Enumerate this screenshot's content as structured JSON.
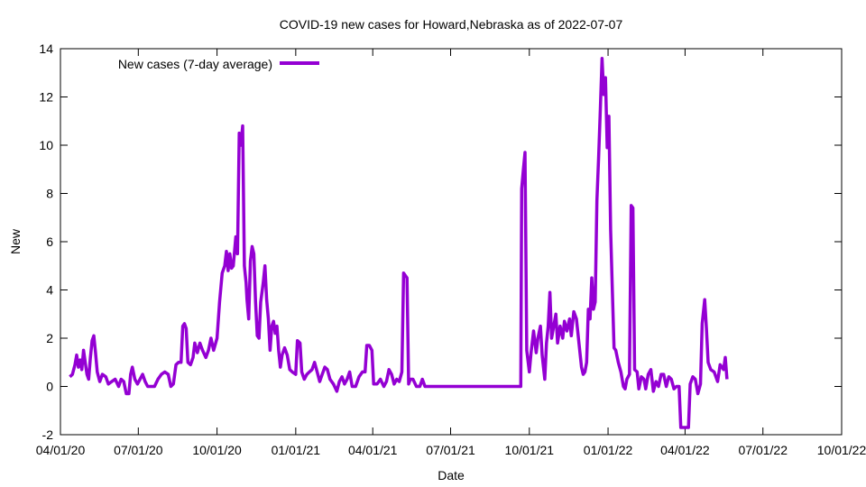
{
  "chart_data": {
    "type": "line",
    "title": "COVID-19 new cases for Howard,Nebraska as of 2022-07-07",
    "xlabel": "Date",
    "ylabel": "New",
    "xlim": [
      "2020-04-01",
      "2022-10-01"
    ],
    "ylim": [
      -2,
      14
    ],
    "x_ticks": [
      "04/01/20",
      "07/01/20",
      "10/01/20",
      "01/01/21",
      "04/01/21",
      "07/01/21",
      "10/01/21",
      "01/01/22",
      "04/01/22",
      "07/01/22",
      "10/01/22"
    ],
    "y_ticks": [
      -2,
      0,
      2,
      4,
      6,
      8,
      10,
      12,
      14
    ],
    "grid": false,
    "legend_position": "top-left",
    "color": "#9400d3",
    "series": [
      {
        "name": "New cases (7-day average)",
        "points": [
          [
            "2020-04-12",
            0.4
          ],
          [
            "2020-04-15",
            0.5
          ],
          [
            "2020-04-18",
            0.9
          ],
          [
            "2020-04-20",
            1.3
          ],
          [
            "2020-04-22",
            0.8
          ],
          [
            "2020-04-24",
            1.1
          ],
          [
            "2020-04-26",
            0.7
          ],
          [
            "2020-04-28",
            1.5
          ],
          [
            "2020-04-30",
            1.0
          ],
          [
            "2020-05-02",
            0.5
          ],
          [
            "2020-05-04",
            0.3
          ],
          [
            "2020-05-06",
            1.2
          ],
          [
            "2020-05-08",
            1.9
          ],
          [
            "2020-05-10",
            2.1
          ],
          [
            "2020-05-12",
            1.4
          ],
          [
            "2020-05-14",
            0.6
          ],
          [
            "2020-05-17",
            0.2
          ],
          [
            "2020-05-20",
            0.5
          ],
          [
            "2020-05-24",
            0.4
          ],
          [
            "2020-05-27",
            0.1
          ],
          [
            "2020-05-31",
            0.2
          ],
          [
            "2020-06-04",
            0.3
          ],
          [
            "2020-06-08",
            0.0
          ],
          [
            "2020-06-11",
            0.3
          ],
          [
            "2020-06-14",
            0.2
          ],
          [
            "2020-06-17",
            -0.3
          ],
          [
            "2020-06-20",
            -0.3
          ],
          [
            "2020-06-22",
            0.5
          ],
          [
            "2020-06-24",
            0.8
          ],
          [
            "2020-06-27",
            0.3
          ],
          [
            "2020-06-30",
            0.1
          ],
          [
            "2020-07-03",
            0.3
          ],
          [
            "2020-07-06",
            0.5
          ],
          [
            "2020-07-09",
            0.2
          ],
          [
            "2020-07-12",
            0.0
          ],
          [
            "2020-07-16",
            0.0
          ],
          [
            "2020-07-20",
            0.0
          ],
          [
            "2020-07-24",
            0.3
          ],
          [
            "2020-07-28",
            0.5
          ],
          [
            "2020-08-01",
            0.6
          ],
          [
            "2020-08-05",
            0.5
          ],
          [
            "2020-08-08",
            0.0
          ],
          [
            "2020-08-11",
            0.1
          ],
          [
            "2020-08-14",
            0.9
          ],
          [
            "2020-08-17",
            1.0
          ],
          [
            "2020-08-20",
            1.0
          ],
          [
            "2020-08-22",
            2.5
          ],
          [
            "2020-08-24",
            2.6
          ],
          [
            "2020-08-26",
            2.4
          ],
          [
            "2020-08-28",
            1.0
          ],
          [
            "2020-08-31",
            0.9
          ],
          [
            "2020-09-03",
            1.2
          ],
          [
            "2020-09-05",
            1.8
          ],
          [
            "2020-09-08",
            1.4
          ],
          [
            "2020-09-11",
            1.8
          ],
          [
            "2020-09-14",
            1.5
          ],
          [
            "2020-09-18",
            1.2
          ],
          [
            "2020-09-21",
            1.5
          ],
          [
            "2020-09-24",
            2.0
          ],
          [
            "2020-09-27",
            1.5
          ],
          [
            "2020-10-01",
            2.0
          ],
          [
            "2020-10-04",
            3.5
          ],
          [
            "2020-10-07",
            4.7
          ],
          [
            "2020-10-10",
            5.0
          ],
          [
            "2020-10-12",
            5.6
          ],
          [
            "2020-10-14",
            4.8
          ],
          [
            "2020-10-16",
            5.5
          ],
          [
            "2020-10-18",
            4.9
          ],
          [
            "2020-10-20",
            5.0
          ],
          [
            "2020-10-23",
            6.2
          ],
          [
            "2020-10-25",
            5.5
          ],
          [
            "2020-10-27",
            10.5
          ],
          [
            "2020-10-29",
            10.0
          ],
          [
            "2020-10-31",
            10.8
          ],
          [
            "2020-11-02",
            5.0
          ],
          [
            "2020-11-04",
            4.3
          ],
          [
            "2020-11-05",
            3.6
          ],
          [
            "2020-11-07",
            2.8
          ],
          [
            "2020-11-09",
            5.2
          ],
          [
            "2020-11-11",
            5.8
          ],
          [
            "2020-11-13",
            5.5
          ],
          [
            "2020-11-15",
            3.5
          ],
          [
            "2020-11-17",
            2.1
          ],
          [
            "2020-11-19",
            2.0
          ],
          [
            "2020-11-21",
            3.5
          ],
          [
            "2020-11-24",
            4.3
          ],
          [
            "2020-11-26",
            5.0
          ],
          [
            "2020-11-28",
            3.6
          ],
          [
            "2020-11-30",
            2.8
          ],
          [
            "2020-12-02",
            1.5
          ],
          [
            "2020-12-04",
            2.5
          ],
          [
            "2020-12-06",
            2.7
          ],
          [
            "2020-12-08",
            2.2
          ],
          [
            "2020-12-10",
            2.5
          ],
          [
            "2020-12-12",
            1.5
          ],
          [
            "2020-12-14",
            0.8
          ],
          [
            "2020-12-16",
            1.3
          ],
          [
            "2020-12-19",
            1.6
          ],
          [
            "2020-12-22",
            1.3
          ],
          [
            "2020-12-25",
            0.7
          ],
          [
            "2020-12-28",
            0.6
          ],
          [
            "2021-01-01",
            0.5
          ],
          [
            "2021-01-03",
            1.9
          ],
          [
            "2021-01-06",
            1.8
          ],
          [
            "2021-01-08",
            0.6
          ],
          [
            "2021-01-11",
            0.3
          ],
          [
            "2021-01-14",
            0.5
          ],
          [
            "2021-01-17",
            0.6
          ],
          [
            "2021-01-20",
            0.7
          ],
          [
            "2021-01-23",
            1.0
          ],
          [
            "2021-01-26",
            0.6
          ],
          [
            "2021-01-29",
            0.2
          ],
          [
            "2021-02-01",
            0.5
          ],
          [
            "2021-02-04",
            0.8
          ],
          [
            "2021-02-07",
            0.7
          ],
          [
            "2021-02-10",
            0.3
          ],
          [
            "2021-02-14",
            0.1
          ],
          [
            "2021-02-18",
            -0.2
          ],
          [
            "2021-02-21",
            0.2
          ],
          [
            "2021-02-24",
            0.4
          ],
          [
            "2021-02-27",
            0.1
          ],
          [
            "2021-03-02",
            0.3
          ],
          [
            "2021-03-05",
            0.6
          ],
          [
            "2021-03-08",
            0.0
          ],
          [
            "2021-03-12",
            0.0
          ],
          [
            "2021-03-16",
            0.4
          ],
          [
            "2021-03-20",
            0.6
          ],
          [
            "2021-03-23",
            0.6
          ],
          [
            "2021-03-25",
            1.7
          ],
          [
            "2021-03-28",
            1.7
          ],
          [
            "2021-03-31",
            1.5
          ],
          [
            "2021-04-02",
            0.1
          ],
          [
            "2021-04-06",
            0.1
          ],
          [
            "2021-04-10",
            0.3
          ],
          [
            "2021-04-14",
            0.0
          ],
          [
            "2021-04-17",
            0.2
          ],
          [
            "2021-04-20",
            0.7
          ],
          [
            "2021-04-23",
            0.5
          ],
          [
            "2021-04-26",
            0.1
          ],
          [
            "2021-04-29",
            0.3
          ],
          [
            "2021-05-02",
            0.2
          ],
          [
            "2021-05-05",
            0.6
          ],
          [
            "2021-05-07",
            4.7
          ],
          [
            "2021-05-09",
            4.6
          ],
          [
            "2021-05-11",
            4.5
          ],
          [
            "2021-05-13",
            0.1
          ],
          [
            "2021-05-15",
            0.3
          ],
          [
            "2021-05-18",
            0.3
          ],
          [
            "2021-05-22",
            0.0
          ],
          [
            "2021-05-26",
            0.0
          ],
          [
            "2021-05-29",
            0.3
          ],
          [
            "2021-06-01",
            0.0
          ],
          [
            "2021-06-10",
            0.0
          ],
          [
            "2021-07-01",
            0.0
          ],
          [
            "2021-08-01",
            0.0
          ],
          [
            "2021-09-01",
            0.0
          ],
          [
            "2021-09-15",
            0.0
          ],
          [
            "2021-09-21",
            0.0
          ],
          [
            "2021-09-22",
            8.2
          ],
          [
            "2021-09-24",
            9.0
          ],
          [
            "2021-09-26",
            9.7
          ],
          [
            "2021-09-28",
            1.5
          ],
          [
            "2021-10-01",
            0.6
          ],
          [
            "2021-10-03",
            1.4
          ],
          [
            "2021-10-06",
            2.3
          ],
          [
            "2021-10-09",
            1.4
          ],
          [
            "2021-10-11",
            2.0
          ],
          [
            "2021-10-14",
            2.5
          ],
          [
            "2021-10-16",
            1.3
          ],
          [
            "2021-10-19",
            0.3
          ],
          [
            "2021-10-21",
            1.8
          ],
          [
            "2021-10-23",
            2.5
          ],
          [
            "2021-10-25",
            3.9
          ],
          [
            "2021-10-27",
            2.0
          ],
          [
            "2021-10-30",
            2.6
          ],
          [
            "2021-11-01",
            3.0
          ],
          [
            "2021-11-03",
            1.8
          ],
          [
            "2021-11-06",
            2.5
          ],
          [
            "2021-11-09",
            2.0
          ],
          [
            "2021-11-11",
            2.7
          ],
          [
            "2021-11-14",
            2.3
          ],
          [
            "2021-11-17",
            2.8
          ],
          [
            "2021-11-19",
            2.1
          ],
          [
            "2021-11-22",
            3.1
          ],
          [
            "2021-11-25",
            2.8
          ],
          [
            "2021-11-28",
            1.8
          ],
          [
            "2021-12-01",
            0.8
          ],
          [
            "2021-12-03",
            0.5
          ],
          [
            "2021-12-05",
            0.6
          ],
          [
            "2021-12-07",
            1.0
          ],
          [
            "2021-12-09",
            3.2
          ],
          [
            "2021-12-11",
            2.8
          ],
          [
            "2021-12-13",
            4.5
          ],
          [
            "2021-12-15",
            3.2
          ],
          [
            "2021-12-17",
            3.5
          ],
          [
            "2021-12-19",
            7.7
          ],
          [
            "2021-12-21",
            9.5
          ],
          [
            "2021-12-23",
            11.5
          ],
          [
            "2021-12-25",
            13.6
          ],
          [
            "2021-12-27",
            12.1
          ],
          [
            "2021-12-29",
            12.8
          ],
          [
            "2021-12-31",
            9.9
          ],
          [
            "2022-01-02",
            11.2
          ],
          [
            "2022-01-04",
            6.5
          ],
          [
            "2022-01-06",
            4.0
          ],
          [
            "2022-01-08",
            1.6
          ],
          [
            "2022-01-10",
            1.5
          ],
          [
            "2022-01-13",
            1.0
          ],
          [
            "2022-01-16",
            0.6
          ],
          [
            "2022-01-19",
            0.0
          ],
          [
            "2022-01-21",
            -0.1
          ],
          [
            "2022-01-23",
            0.3
          ],
          [
            "2022-01-26",
            0.5
          ],
          [
            "2022-01-28",
            7.5
          ],
          [
            "2022-01-30",
            7.4
          ],
          [
            "2022-02-01",
            0.7
          ],
          [
            "2022-02-04",
            0.6
          ],
          [
            "2022-02-06",
            -0.1
          ],
          [
            "2022-02-09",
            0.4
          ],
          [
            "2022-02-12",
            0.3
          ],
          [
            "2022-02-14",
            -0.1
          ],
          [
            "2022-02-17",
            0.5
          ],
          [
            "2022-02-20",
            0.7
          ],
          [
            "2022-02-23",
            -0.2
          ],
          [
            "2022-02-26",
            0.2
          ],
          [
            "2022-03-01",
            0.0
          ],
          [
            "2022-03-04",
            0.5
          ],
          [
            "2022-03-07",
            0.5
          ],
          [
            "2022-03-10",
            0.0
          ],
          [
            "2022-03-13",
            0.4
          ],
          [
            "2022-03-16",
            0.3
          ],
          [
            "2022-03-19",
            -0.1
          ],
          [
            "2022-03-22",
            0.0
          ],
          [
            "2022-03-25",
            0.0
          ],
          [
            "2022-03-27",
            -1.7
          ],
          [
            "2022-04-01",
            -1.7
          ],
          [
            "2022-04-05",
            -1.7
          ],
          [
            "2022-04-07",
            0.1
          ],
          [
            "2022-04-10",
            0.4
          ],
          [
            "2022-04-13",
            0.3
          ],
          [
            "2022-04-16",
            -0.3
          ],
          [
            "2022-04-19",
            0.1
          ],
          [
            "2022-04-21",
            2.6
          ],
          [
            "2022-04-24",
            3.6
          ],
          [
            "2022-04-26",
            2.4
          ],
          [
            "2022-04-28",
            1.0
          ],
          [
            "2022-05-01",
            0.7
          ],
          [
            "2022-05-05",
            0.6
          ],
          [
            "2022-05-09",
            0.2
          ],
          [
            "2022-05-12",
            0.9
          ],
          [
            "2022-05-16",
            0.7
          ],
          [
            "2022-05-18",
            1.2
          ],
          [
            "2022-05-20",
            0.3
          ]
        ]
      }
    ]
  }
}
